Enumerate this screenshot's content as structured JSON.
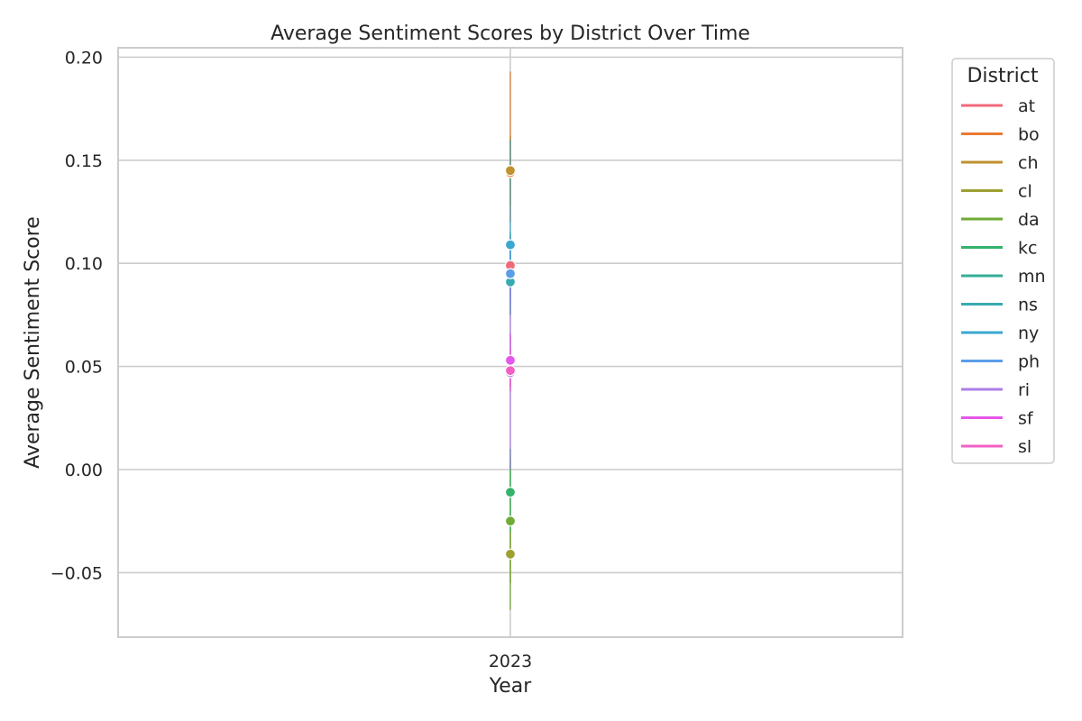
{
  "chart_data": {
    "type": "line",
    "title": "Average Sentiment Scores by District Over Time",
    "xlabel": "Year",
    "ylabel": "Average Sentiment Score",
    "x_ticks": [
      "2023"
    ],
    "y_ticks": [
      -0.05,
      0.0,
      0.05,
      0.1,
      0.15,
      0.2
    ],
    "y_tick_labels": [
      "−0.05",
      "0.00",
      "0.05",
      "0.10",
      "0.15",
      "0.20"
    ],
    "ylim": [
      -0.081,
      0.204
    ],
    "grid": true,
    "legend": {
      "title": "District",
      "placement": "outside-right"
    },
    "series": [
      {
        "name": "at",
        "color": "#f0697a",
        "value": 0.099,
        "ci": [
          0.085,
          0.113
        ]
      },
      {
        "name": "bo",
        "color": "#ea7a32",
        "value": 0.144,
        "ci": [
          0.12,
          0.193
        ]
      },
      {
        "name": "ch",
        "color": "#c0922f",
        "value": 0.145,
        "ci": [
          0.128,
          0.162
        ]
      },
      {
        "name": "cl",
        "color": "#9ea032",
        "value": -0.041,
        "ci": [
          -0.055,
          -0.03
        ]
      },
      {
        "name": "da",
        "color": "#6fab35",
        "value": -0.025,
        "ci": [
          -0.068,
          0.005
        ]
      },
      {
        "name": "kc",
        "color": "#35b26c",
        "value": -0.011,
        "ci": [
          -0.03,
          0.01
        ]
      },
      {
        "name": "mn",
        "color": "#36ae97",
        "value": 0.095,
        "ci": [
          0.075,
          0.115
        ]
      },
      {
        "name": "ns",
        "color": "#38aab0",
        "value": 0.091,
        "ci": [
          0.075,
          0.108
        ]
      },
      {
        "name": "ny",
        "color": "#3aa8d0",
        "value": 0.109,
        "ci": [
          0.09,
          0.16
        ]
      },
      {
        "name": "ph",
        "color": "#5a9de8",
        "value": 0.095,
        "ci": [
          0.08,
          0.11
        ]
      },
      {
        "name": "ri",
        "color": "#ad7de9",
        "value": 0.047,
        "ci": [
          0.0,
          0.09
        ]
      },
      {
        "name": "sf",
        "color": "#e557e8",
        "value": 0.053,
        "ci": [
          0.04,
          0.066
        ]
      },
      {
        "name": "sl",
        "color": "#f25fc4",
        "value": 0.048,
        "ci": [
          0.038,
          0.058
        ]
      }
    ]
  }
}
